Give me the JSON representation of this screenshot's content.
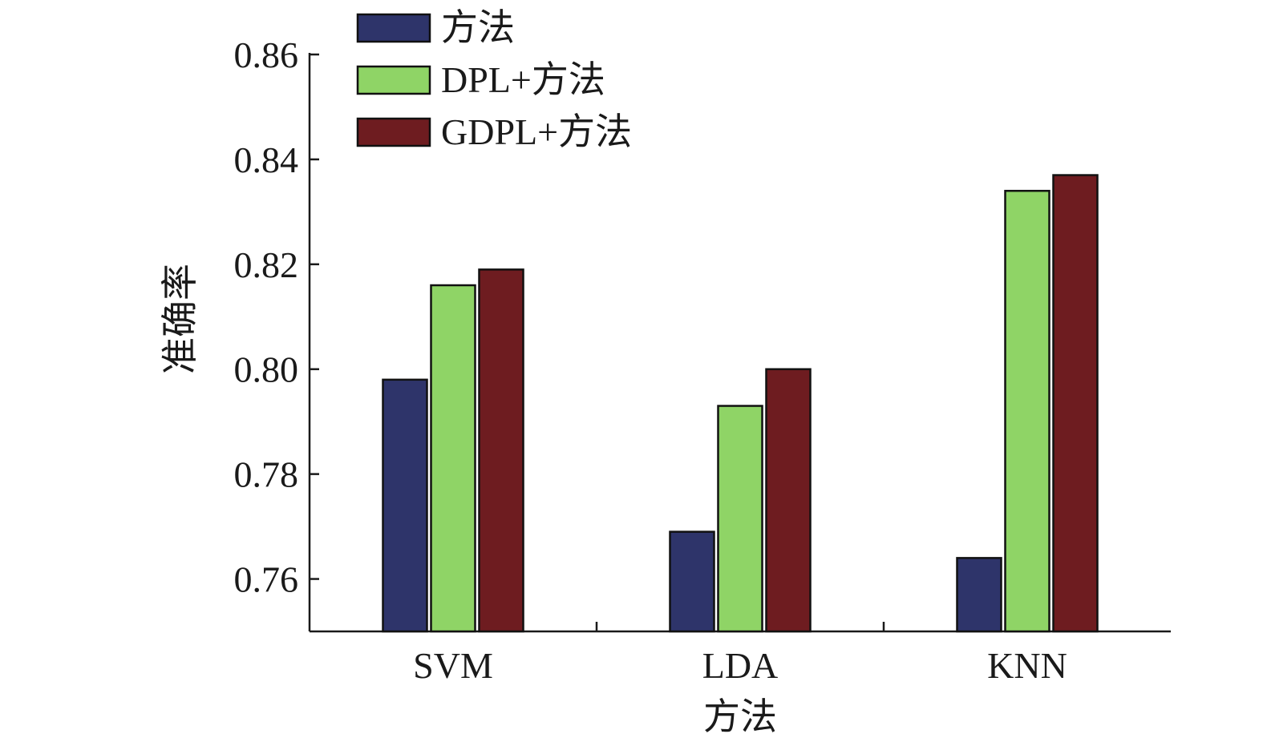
{
  "chart_data": {
    "type": "bar",
    "title": "",
    "xlabel": "方法",
    "ylabel": "准确率",
    "categories": [
      "SVM",
      "LDA",
      "KNN"
    ],
    "series": [
      {
        "name": "方法",
        "color": "#2e346a",
        "values": [
          0.798,
          0.769,
          0.764
        ]
      },
      {
        "name": "DPL+方法",
        "color": "#8fd466",
        "values": [
          0.816,
          0.793,
          0.834
        ]
      },
      {
        "name": "GDPL+方法",
        "color": "#6e1c20",
        "values": [
          0.819,
          0.8,
          0.837
        ]
      }
    ],
    "ylim": [
      0.75,
      0.86
    ],
    "yticks": [
      0.76,
      0.78,
      0.8,
      0.82,
      0.84,
      0.86
    ],
    "ytick_labels": [
      "0.76",
      "0.78",
      "0.80",
      "0.82",
      "0.84",
      "0.86"
    ],
    "grid": false,
    "legend_position": "top-left"
  }
}
